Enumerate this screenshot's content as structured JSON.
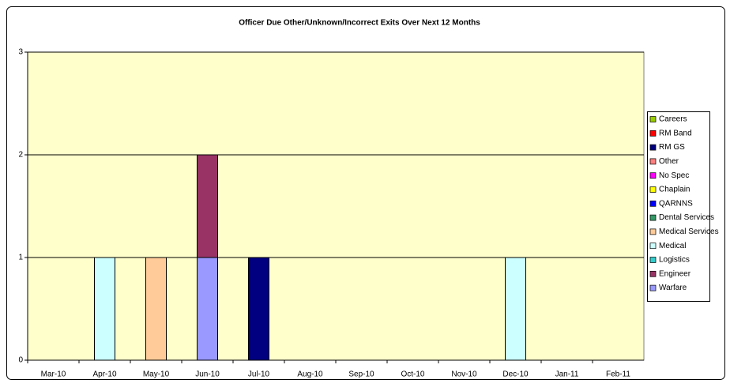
{
  "chart_data": {
    "type": "bar",
    "stacked": true,
    "title": "Officer Due Other/Unknown/Incorrect Exits Over Next 12 Months",
    "categories": [
      "Mar-10",
      "Apr-10",
      "May-10",
      "Jun-10",
      "Jul-10",
      "Aug-10",
      "Sep-10",
      "Oct-10",
      "Nov-10",
      "Dec-10",
      "Jan-11",
      "Feb-11"
    ],
    "series": [
      {
        "name": "Warfare",
        "color": "#9999ff",
        "values": [
          0,
          0,
          0,
          1,
          0,
          0,
          0,
          0,
          0,
          0,
          0,
          0
        ]
      },
      {
        "name": "Engineer",
        "color": "#993366",
        "values": [
          0,
          0,
          0,
          1,
          0,
          0,
          0,
          0,
          0,
          0,
          0,
          0
        ]
      },
      {
        "name": "Logistics",
        "color": "#33cccc",
        "values": [
          0,
          0,
          0,
          0,
          0,
          0,
          0,
          0,
          0,
          0,
          0,
          0
        ]
      },
      {
        "name": "Medical",
        "color": "#ccffff",
        "values": [
          0,
          1,
          0,
          0,
          0,
          0,
          0,
          0,
          0,
          1,
          0,
          0
        ]
      },
      {
        "name": "Medical Services",
        "color": "#ffcc99",
        "values": [
          0,
          0,
          1,
          0,
          0,
          0,
          0,
          0,
          0,
          0,
          0,
          0
        ]
      },
      {
        "name": "Dental Services",
        "color": "#339966",
        "values": [
          0,
          0,
          0,
          0,
          0,
          0,
          0,
          0,
          0,
          0,
          0,
          0
        ]
      },
      {
        "name": "QARNNS",
        "color": "#0000ff",
        "values": [
          0,
          0,
          0,
          0,
          0,
          0,
          0,
          0,
          0,
          0,
          0,
          0
        ]
      },
      {
        "name": "Chaplain",
        "color": "#ffff00",
        "values": [
          0,
          0,
          0,
          0,
          0,
          0,
          0,
          0,
          0,
          0,
          0,
          0
        ]
      },
      {
        "name": "No Spec",
        "color": "#ff00ff",
        "values": [
          0,
          0,
          0,
          0,
          0,
          0,
          0,
          0,
          0,
          0,
          0,
          0
        ]
      },
      {
        "name": "Other",
        "color": "#ff8080",
        "values": [
          0,
          0,
          0,
          0,
          0,
          0,
          0,
          0,
          0,
          0,
          0,
          0
        ]
      },
      {
        "name": "RM GS",
        "color": "#000080",
        "values": [
          0,
          0,
          0,
          0,
          1,
          0,
          0,
          0,
          0,
          0,
          0,
          0
        ]
      },
      {
        "name": "RM Band",
        "color": "#ff0000",
        "values": [
          0,
          0,
          0,
          0,
          0,
          0,
          0,
          0,
          0,
          0,
          0,
          0
        ]
      },
      {
        "name": "Careers",
        "color": "#99cc00",
        "values": [
          0,
          0,
          0,
          0,
          0,
          0,
          0,
          0,
          0,
          0,
          0,
          0
        ]
      }
    ],
    "ylim": [
      0,
      3
    ],
    "yticks": [
      0,
      1,
      2,
      3
    ],
    "grid": true,
    "legend": "right"
  }
}
